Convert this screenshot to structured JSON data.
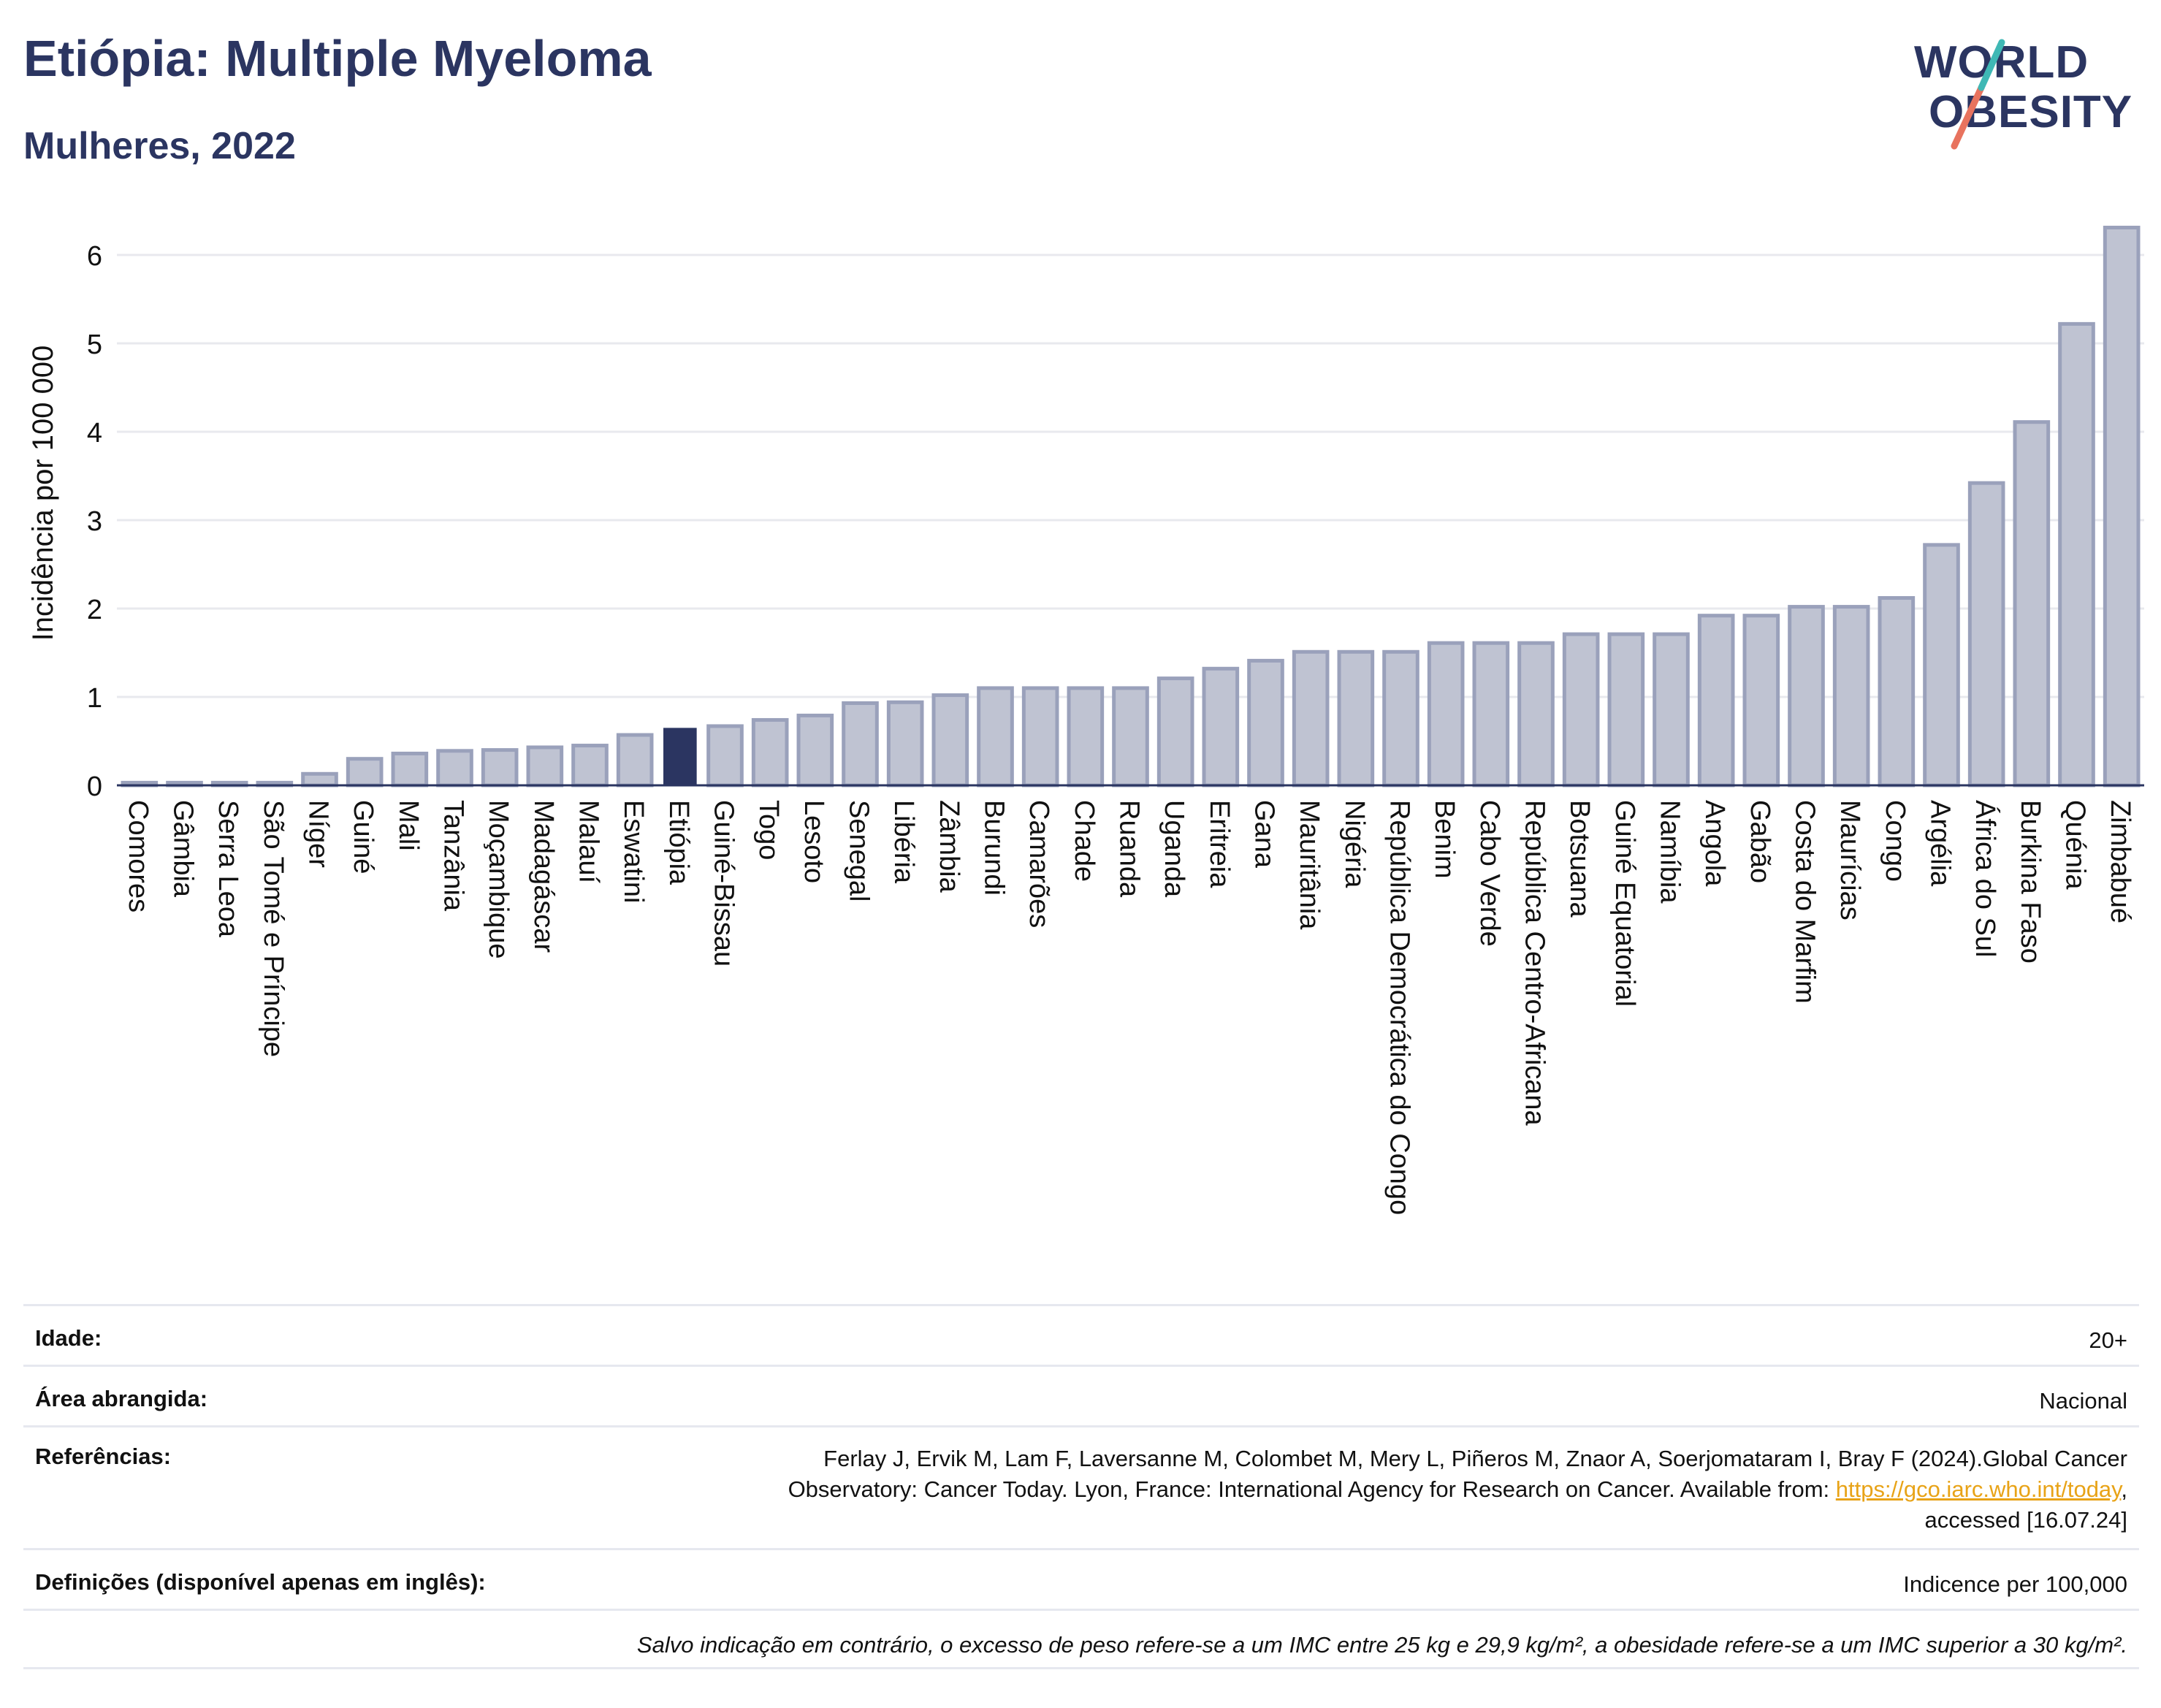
{
  "header": {
    "title": "Etiópia: Multiple Myeloma",
    "subtitle": "Mulheres, 2022",
    "logo_line1": "WORLD",
    "logo_line2": "OBESITY"
  },
  "chart_data": {
    "type": "bar",
    "ylabel": "Incidência por 100 000",
    "ylim": [
      0,
      6.6
    ],
    "yticks": [
      0,
      1,
      2,
      3,
      4,
      5,
      6
    ],
    "grid": true,
    "highlight": "Etiópia",
    "colors": {
      "bar": "#bfc3d2",
      "bar_edge": "#9aa1bb",
      "highlight": "#2b3561",
      "grid": "#e8e9ee",
      "axis": "#2b3561"
    },
    "categories": [
      "Comores",
      "Gâmbia",
      "Serra Leoa",
      "São Tomé e Príncipe",
      "Níger",
      "Guiné",
      "Mali",
      "Tanzânia",
      "Moçambique",
      "Madagáscar",
      "Malauí",
      "Eswatini",
      "Etiópia",
      "Guiné-Bissau",
      "Togo",
      "Lesoto",
      "Senegal",
      "Libéria",
      "Zâmbia",
      "Burundi",
      "Camarões",
      "Chade",
      "Ruanda",
      "Uganda",
      "Eritreia",
      "Gana",
      "Mauritânia",
      "Nigéria",
      "República Democrática do Congo",
      "Benim",
      "Cabo Verde",
      "República Centro-Africana",
      "Botsuana",
      "Guiné Equatorial",
      "Namíbia",
      "Angola",
      "Gabão",
      "Costa do Marfim",
      "Maurícias",
      "Congo",
      "Argélia",
      "África do Sul",
      "Burkina Faso",
      "Quénia",
      "Zimbabué"
    ],
    "values": [
      0.03,
      0.03,
      0.03,
      0.03,
      0.13,
      0.3,
      0.36,
      0.39,
      0.4,
      0.43,
      0.45,
      0.57,
      0.65,
      0.67,
      0.74,
      0.79,
      0.93,
      0.94,
      1.02,
      1.1,
      1.1,
      1.1,
      1.1,
      1.21,
      1.32,
      1.41,
      1.51,
      1.51,
      1.51,
      1.61,
      1.61,
      1.61,
      1.71,
      1.71,
      1.71,
      1.92,
      1.92,
      2.02,
      2.02,
      2.12,
      2.72,
      3.42,
      4.11,
      5.22,
      6.31
    ]
  },
  "meta": {
    "age_label": "Idade:",
    "age_value": "20+",
    "area_label": "Área abrangida:",
    "area_value": "Nacional",
    "ref_label": "Referências:",
    "ref_line1": "Ferlay J, Ervik M, Lam F, Laversanne M, Colombet M, Mery L, Piñeros M, Znaor A, Soerjomataram I, Bray F (2024).Global Cancer",
    "ref_line2_pre": "Observatory: Cancer Today. Lyon, France: International Agency for Research on Cancer. Available from: ",
    "ref_link": "https://gco.iarc.who.int/today",
    "ref_line2_post": ",",
    "ref_line3": "accessed [16.07.24]",
    "def_label": "Definições (disponível apenas em inglês):",
    "def_value": "Indicence per 100,000",
    "note": "Salvo indicação em contrário, o excesso de peso refere-se a um IMC entre 25 kg e 29,9 kg/m², a obesidade refere-se a um IMC superior a 30 kg/m²."
  }
}
